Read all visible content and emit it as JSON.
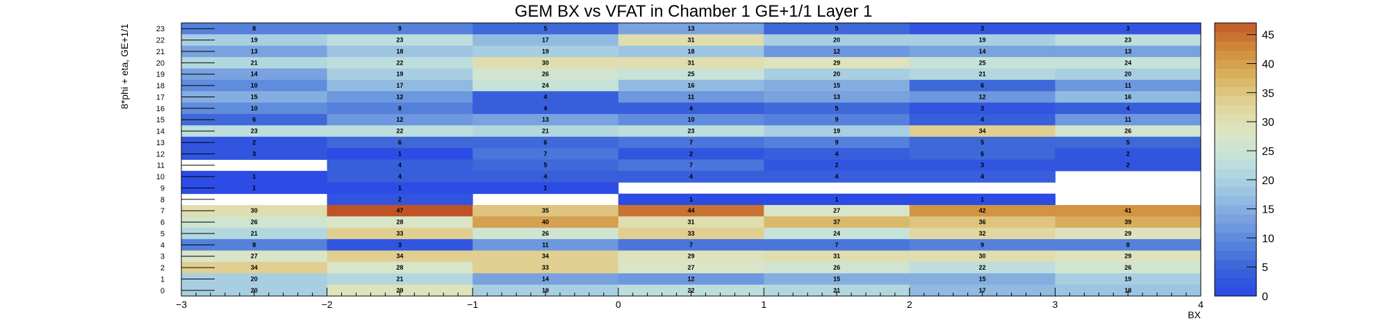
{
  "chart_data": {
    "type": "heatmap",
    "title": "GEM BX vs VFAT in Chamber 1 GE+1/1 Layer 1",
    "xlabel": "BX",
    "ylabel": "8*phi + eta, GE+1/1",
    "xlim": [
      -3,
      4
    ],
    "ylim": [
      0,
      24
    ],
    "x_ticks": [
      "−3",
      "−2",
      "−1",
      "0",
      "1",
      "2",
      "3",
      "4"
    ],
    "y_ticks": [
      "0",
      "1",
      "2",
      "3",
      "4",
      "5",
      "6",
      "7",
      "8",
      "9",
      "10",
      "11",
      "12",
      "13",
      "14",
      "15",
      "16",
      "17",
      "18",
      "19",
      "20",
      "21",
      "22",
      "23"
    ],
    "zlim": [
      0,
      47
    ],
    "palette_ticks": [
      "0",
      "5",
      "10",
      "15",
      "20",
      "25",
      "30",
      "35",
      "40",
      "45"
    ],
    "columns": [
      "(−3,−2)",
      "(−2,−1)",
      "(−1,0)",
      "(0,1)",
      "(1,2)",
      "(2,3)",
      "(3,4)"
    ],
    "rows": [
      {
        "y": 23,
        "values": [
          8,
          9,
          5,
          13,
          5,
          3,
          3
        ]
      },
      {
        "y": 22,
        "values": [
          19,
          23,
          17,
          31,
          20,
          19,
          23
        ]
      },
      {
        "y": 21,
        "values": [
          13,
          18,
          19,
          18,
          12,
          14,
          13
        ]
      },
      {
        "y": 20,
        "values": [
          21,
          22,
          30,
          31,
          29,
          25,
          24
        ]
      },
      {
        "y": 19,
        "values": [
          14,
          19,
          26,
          25,
          20,
          21,
          20
        ]
      },
      {
        "y": 18,
        "values": [
          10,
          17,
          24,
          16,
          15,
          6,
          11
        ]
      },
      {
        "y": 17,
        "values": [
          15,
          12,
          4,
          11,
          13,
          12,
          16
        ]
      },
      {
        "y": 16,
        "values": [
          10,
          8,
          4,
          4,
          5,
          3,
          4
        ]
      },
      {
        "y": 15,
        "values": [
          6,
          12,
          13,
          10,
          9,
          4,
          11
        ]
      },
      {
        "y": 14,
        "values": [
          23,
          22,
          21,
          23,
          19,
          34,
          26
        ]
      },
      {
        "y": 13,
        "values": [
          2,
          6,
          6,
          7,
          9,
          5,
          5
        ]
      },
      {
        "y": 12,
        "values": [
          3,
          1,
          7,
          2,
          4,
          6,
          2
        ]
      },
      {
        "y": 11,
        "values": [
          null,
          4,
          5,
          7,
          2,
          3,
          2
        ]
      },
      {
        "y": 10,
        "values": [
          1,
          4,
          4,
          4,
          4,
          4,
          null
        ]
      },
      {
        "y": 9,
        "values": [
          1,
          1,
          1,
          null,
          null,
          null,
          null
        ]
      },
      {
        "y": 8,
        "values": [
          null,
          2,
          null,
          1,
          1,
          1,
          null
        ]
      },
      {
        "y": 7,
        "values": [
          30,
          47,
          35,
          44,
          27,
          42,
          41
        ]
      },
      {
        "y": 6,
        "values": [
          26,
          28,
          40,
          31,
          37,
          36,
          39
        ]
      },
      {
        "y": 5,
        "values": [
          21,
          33,
          26,
          33,
          24,
          32,
          29
        ]
      },
      {
        "y": 4,
        "values": [
          8,
          3,
          11,
          7,
          7,
          9,
          8
        ]
      },
      {
        "y": 3,
        "values": [
          27,
          34,
          34,
          29,
          31,
          30,
          29
        ]
      },
      {
        "y": 2,
        "values": [
          34,
          28,
          33,
          27,
          26,
          22,
          26
        ]
      },
      {
        "y": 1,
        "values": [
          20,
          21,
          14,
          12,
          15,
          15,
          19
        ]
      },
      {
        "y": 0,
        "values": [
          20,
          29,
          19,
          22,
          21,
          17,
          18
        ]
      }
    ],
    "palette_colors": [
      "#2a47e8",
      "#3a63d8",
      "#5a86dc",
      "#7fa8e0",
      "#a3cbe2",
      "#c2e2dc",
      "#dde6c4",
      "#e2d49a",
      "#d9b462",
      "#d08c3c",
      "#c25a2a"
    ],
    "grid": false,
    "legend": "right color palette"
  }
}
